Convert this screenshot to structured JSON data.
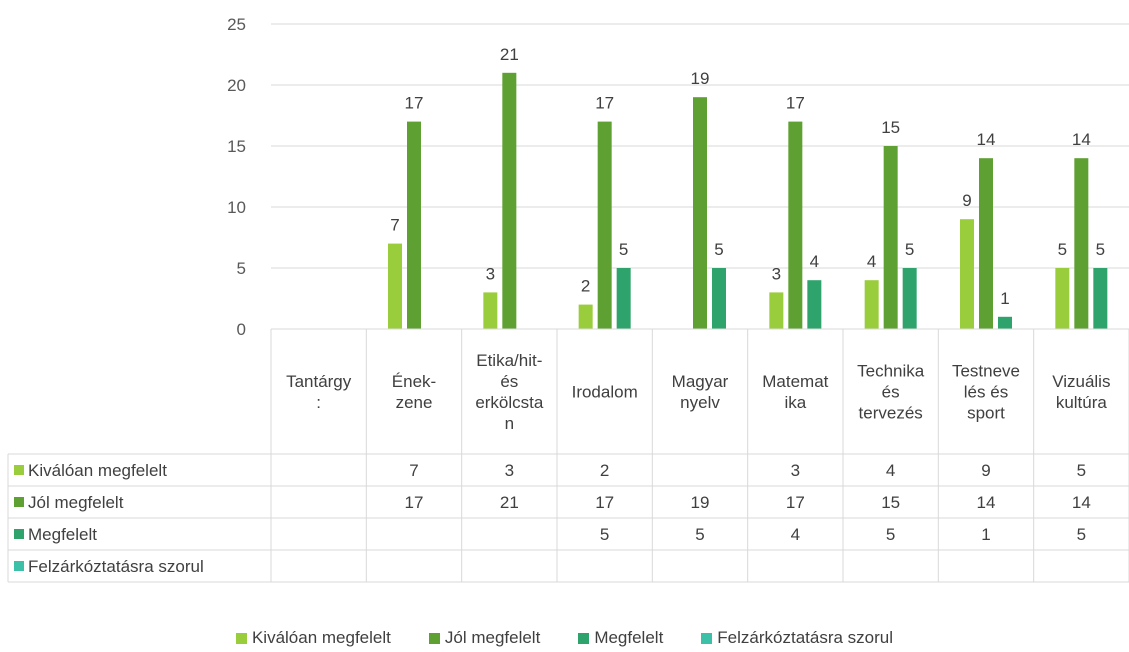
{
  "chart_data": {
    "type": "bar",
    "categories": [
      "Tantárgy\n:",
      "Ének-\nzene",
      "Etika/hit-\nés\nerkölcsta\nn",
      "Irodalom",
      "Magyar\nnyelv",
      "Matemat\nika",
      "Technika\nés\ntervezés",
      "Testneve\nlés és\nsport",
      "Vizuális\nkultúra"
    ],
    "series": [
      {
        "name": "Kiválóan megfelelt",
        "color": "#9ACD3C",
        "values": [
          null,
          7,
          3,
          2,
          null,
          3,
          4,
          9,
          5
        ]
      },
      {
        "name": "Jól megfelelt",
        "color": "#5FA032",
        "values": [
          null,
          17,
          21,
          17,
          19,
          17,
          15,
          14,
          14
        ]
      },
      {
        "name": "Megfelelt",
        "color": "#2EA36B",
        "values": [
          null,
          null,
          null,
          5,
          5,
          4,
          5,
          1,
          5
        ]
      },
      {
        "name": "Felzárkóztatásra szorul",
        "color": "#3CC0A8",
        "values": [
          null,
          null,
          null,
          null,
          null,
          null,
          null,
          null,
          null
        ]
      }
    ],
    "y_ticks": [
      "0",
      "5",
      "10",
      "15",
      "20",
      "25"
    ],
    "ylim": [
      0,
      25
    ],
    "grid": true,
    "legend": "bottom",
    "data_table": true
  }
}
